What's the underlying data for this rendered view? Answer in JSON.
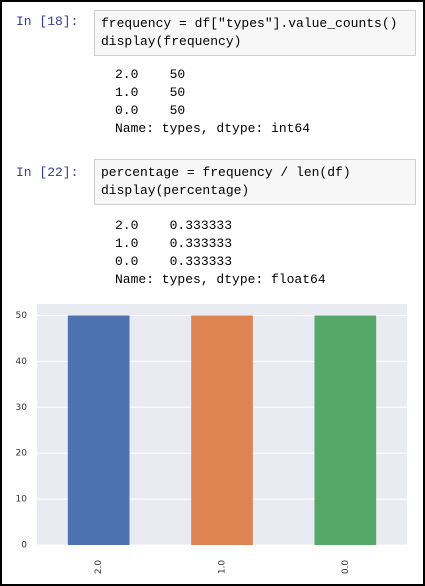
{
  "cells": [
    {
      "prompt": "In [18]:",
      "code": [
        "frequency = df[\"types\"].value_counts()",
        "display(frequency)"
      ],
      "output": [
        "2.0    50",
        "1.0    50",
        "0.0    50",
        "Name: types, dtype: int64"
      ]
    },
    {
      "prompt": "In [22]:",
      "code": [
        "percentage = frequency / len(df)",
        "display(percentage)"
      ],
      "output": [
        "2.0    0.333333",
        "1.0    0.333333",
        "0.0    0.333333",
        "Name: types, dtype: float64"
      ]
    }
  ],
  "chart_data": {
    "type": "bar",
    "categories": [
      "2.0",
      "1.0",
      "0.0"
    ],
    "values": [
      50,
      50,
      50
    ],
    "colors": [
      "#4c72b0",
      "#dd8452",
      "#55a868"
    ],
    "ylim": [
      0,
      52.5
    ],
    "yticks": [
      0,
      10,
      20,
      30,
      40,
      50
    ],
    "grid": true
  }
}
